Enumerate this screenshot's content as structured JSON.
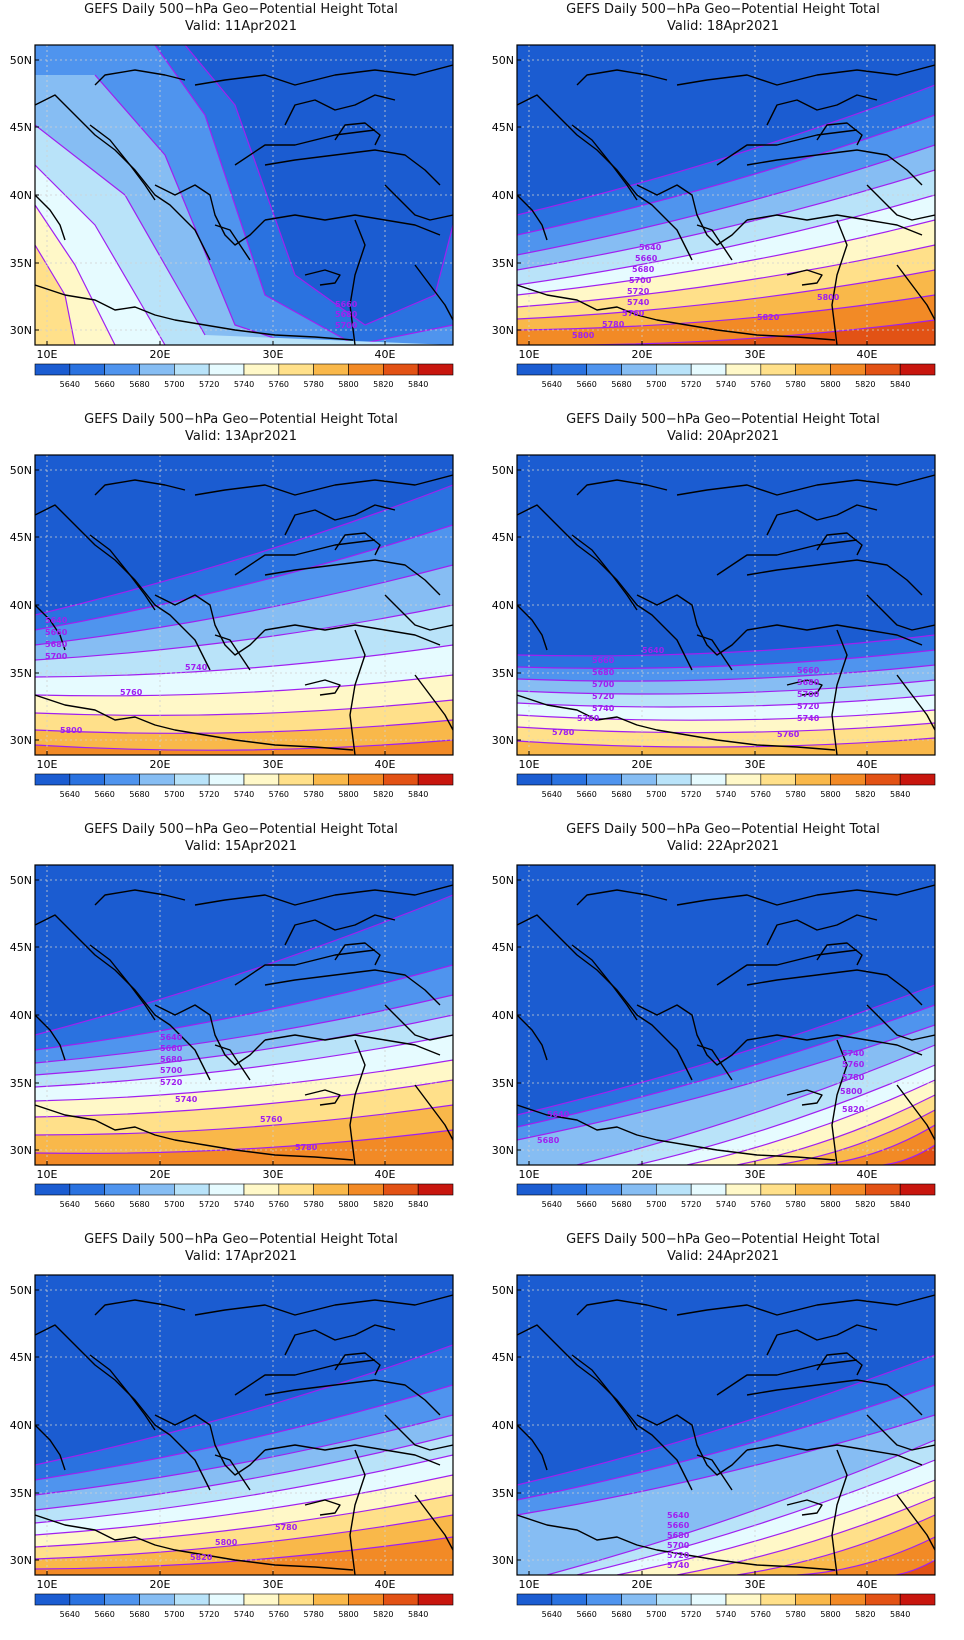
{
  "colorbar": {
    "levels": [
      "5640",
      "5660",
      "5680",
      "5700",
      "5720",
      "5740",
      "5760",
      "5780",
      "5800",
      "5820",
      "5840"
    ],
    "colors": [
      "#1b5cd1",
      "#2a72e0",
      "#4f94ee",
      "#86bdf3",
      "#b9e3f9",
      "#e6fbff",
      "#fff8c8",
      "#ffe08a",
      "#f9b84a",
      "#f28a26",
      "#e25215",
      "#c8160e"
    ]
  },
  "axes": {
    "lon_ticks": [
      "10E",
      "20E",
      "30E",
      "40E"
    ],
    "lat_ticks": [
      "50N",
      "45N",
      "40N",
      "35N",
      "30N"
    ]
  },
  "panels": [
    {
      "title": "GEFS Daily 500−hPa Geo−Potential Height Total",
      "valid": "Valid:  11Apr2021",
      "labels": [
        "5660",
        "5680",
        "5700"
      ]
    },
    {
      "title": "GEFS Daily 500−hPa Geo−Potential Height Total",
      "valid": "Valid:  18Apr2021",
      "labels": [
        "5640",
        "5660",
        "5680",
        "5700",
        "5720",
        "5740",
        "5760",
        "5780",
        "5800",
        "5800",
        "5820"
      ]
    },
    {
      "title": "GEFS Daily 500−hPa Geo−Potential Height Total",
      "valid": "Valid:  13Apr2021",
      "labels": [
        "5640",
        "5660",
        "5680",
        "5700",
        "5740",
        "5760",
        "5800"
      ]
    },
    {
      "title": "GEFS Daily 500−hPa Geo−Potential Height Total",
      "valid": "Valid:  20Apr2021",
      "labels": [
        "5640",
        "5660",
        "5680",
        "5700",
        "5720",
        "5740",
        "5760",
        "5780",
        "5660",
        "5680",
        "5700",
        "5720",
        "5740",
        "5760"
      ]
    },
    {
      "title": "GEFS Daily 500−hPa Geo−Potential Height Total",
      "valid": "Valid:  15Apr2021",
      "labels": [
        "5640",
        "5660",
        "5680",
        "5700",
        "5720",
        "5740",
        "5760",
        "5780"
      ]
    },
    {
      "title": "GEFS Daily 500−hPa Geo−Potential Height Total",
      "valid": "Valid:  22Apr2021",
      "labels": [
        "5640",
        "5680",
        "5740",
        "5760",
        "5780",
        "5800",
        "5820"
      ]
    },
    {
      "title": "GEFS Daily 500−hPa Geo−Potential Height Total",
      "valid": "Valid:  17Apr2021",
      "labels": [
        "5780",
        "5800",
        "5820"
      ]
    },
    {
      "title": "GEFS Daily 500−hPa Geo−Potential Height Total",
      "valid": "Valid:  24Apr2021",
      "labels": [
        "5640",
        "5660",
        "5680",
        "5700",
        "5720",
        "5740"
      ]
    }
  ]
}
